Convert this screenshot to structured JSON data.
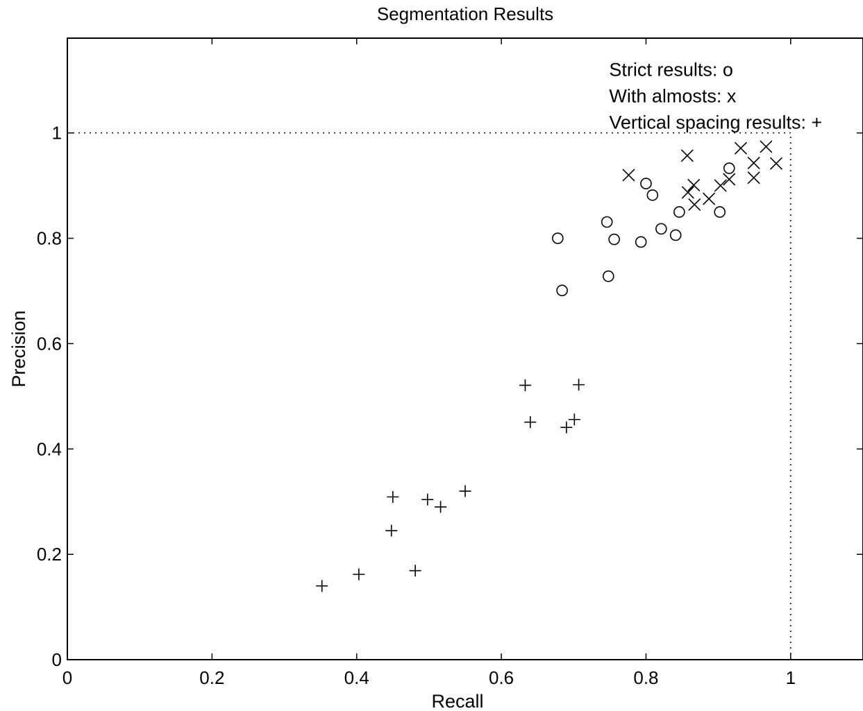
{
  "chart_data": {
    "type": "scatter",
    "title": "Segmentation Results",
    "xlabel": "Recall",
    "ylabel": "Precision",
    "xlim": [
      0,
      1.1
    ],
    "ylim": [
      0,
      1.18
    ],
    "xticks": [
      0,
      0.2,
      0.4,
      0.6,
      0.8,
      1
    ],
    "yticks": [
      0,
      0.2,
      0.4,
      0.6,
      0.8,
      1
    ],
    "xtick_labels": [
      "0",
      "0.2",
      "0.4",
      "0.6",
      "0.8",
      "1"
    ],
    "ytick_labels": [
      "0",
      "0.2",
      "0.4",
      "0.6",
      "0.8",
      "1"
    ],
    "grid": false,
    "reference_lines": [
      {
        "orientation": "horizontal",
        "value": 1,
        "from": 0,
        "to": 1,
        "style": "dotted"
      },
      {
        "orientation": "vertical",
        "value": 1,
        "from": 0,
        "to": 1,
        "style": "dotted"
      }
    ],
    "annotations": [
      {
        "text": "Strict results:  o",
        "x": 0.75,
        "y": 1.12
      },
      {
        "text": "With almosts:  x",
        "x": 0.75,
        "y": 1.07
      },
      {
        "text": "Vertical spacing results:  +",
        "x": 0.75,
        "y": 1.02
      }
    ],
    "series": [
      {
        "marker": "circle",
        "points": [
          [
            0.678,
            0.8
          ],
          [
            0.684,
            0.701
          ],
          [
            0.746,
            0.831
          ],
          [
            0.748,
            0.728
          ],
          [
            0.756,
            0.798
          ],
          [
            0.793,
            0.793
          ],
          [
            0.8,
            0.904
          ],
          [
            0.809,
            0.882
          ],
          [
            0.821,
            0.818
          ],
          [
            0.841,
            0.806
          ],
          [
            0.846,
            0.85
          ],
          [
            0.902,
            0.85
          ],
          [
            0.915,
            0.933
          ]
        ]
      },
      {
        "marker": "x",
        "points": [
          [
            0.776,
            0.92
          ],
          [
            0.857,
            0.957
          ],
          [
            0.858,
            0.887
          ],
          [
            0.866,
            0.901
          ],
          [
            0.867,
            0.864
          ],
          [
            0.887,
            0.875
          ],
          [
            0.903,
            0.9
          ],
          [
            0.915,
            0.912
          ],
          [
            0.931,
            0.971
          ],
          [
            0.949,
            0.943
          ],
          [
            0.949,
            0.915
          ],
          [
            0.966,
            0.974
          ],
          [
            0.98,
            0.942
          ]
        ]
      },
      {
        "marker": "plus",
        "points": [
          [
            0.352,
            0.14
          ],
          [
            0.403,
            0.162
          ],
          [
            0.448,
            0.245
          ],
          [
            0.45,
            0.309
          ],
          [
            0.481,
            0.169
          ],
          [
            0.498,
            0.304
          ],
          [
            0.516,
            0.29
          ],
          [
            0.55,
            0.32
          ],
          [
            0.633,
            0.521
          ],
          [
            0.64,
            0.451
          ],
          [
            0.69,
            0.441
          ],
          [
            0.701,
            0.456
          ],
          [
            0.707,
            0.522
          ]
        ]
      }
    ]
  }
}
